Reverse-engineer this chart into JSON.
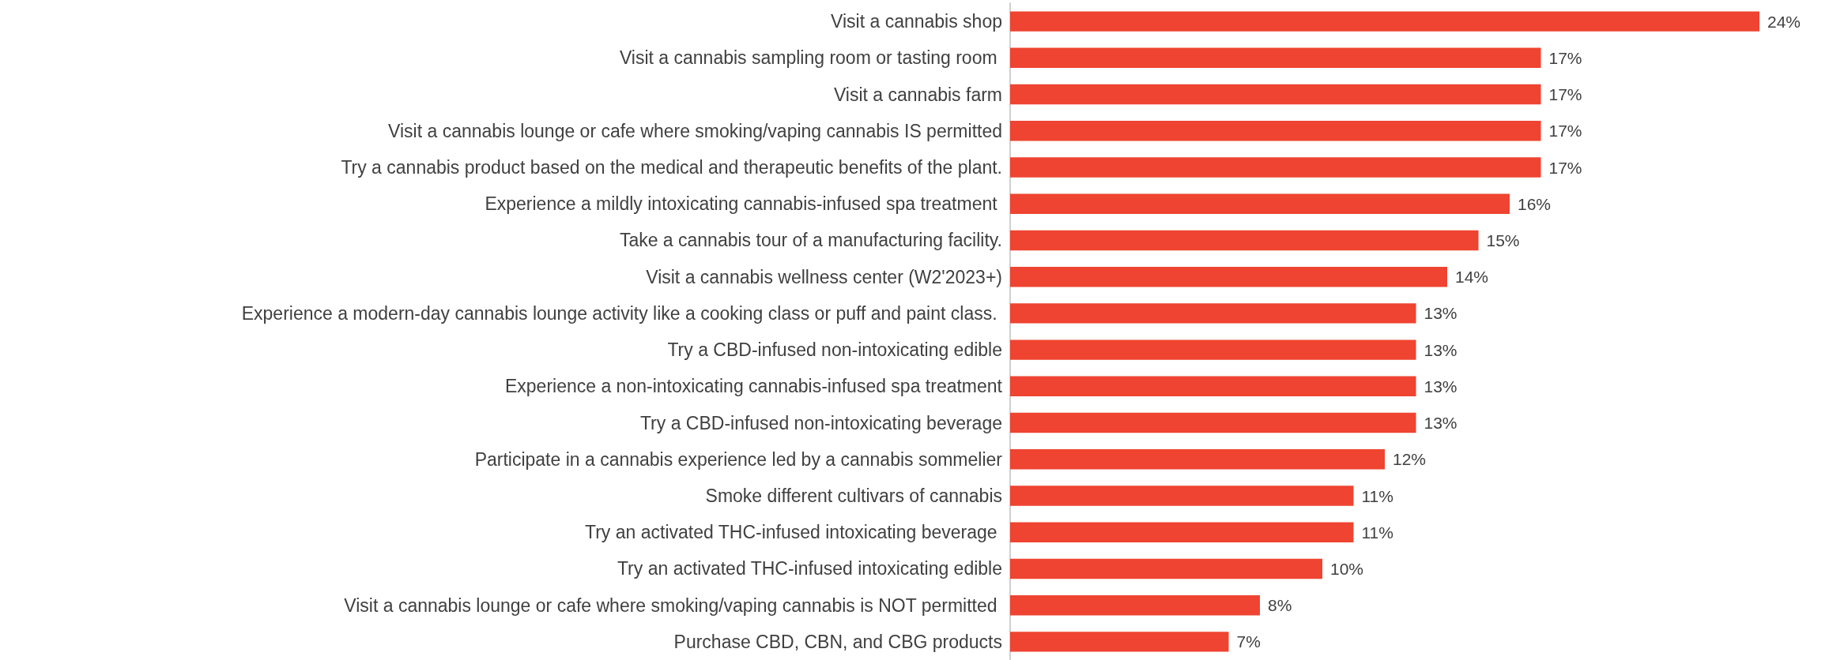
{
  "chart_data": {
    "type": "bar",
    "orientation": "horizontal",
    "categories": [
      "Visit a cannabis shop",
      "Visit a cannabis sampling room or tasting room ",
      "Visit a cannabis farm",
      "Visit a cannabis lounge or cafe where smoking/vaping cannabis IS permitted",
      "Try a cannabis product based on the medical and therapeutic benefits of the plant.",
      "Experience a mildly intoxicating cannabis-infused spa treatment ",
      "Take a cannabis tour of a manufacturing facility.",
      "Visit a cannabis wellness center (W2'2023+)",
      "Experience a modern-day cannabis lounge activity like a cooking class or puff and paint class. ",
      "Try a CBD-infused non-intoxicating edible",
      "Experience a non-intoxicating cannabis-infused spa treatment",
      "Try a CBD-infused non-intoxicating beverage",
      "Participate in a cannabis experience led by a cannabis sommelier",
      "Smoke different cultivars of cannabis",
      "Try an activated THC-infused intoxicating beverage ",
      "Try an activated THC-infused intoxicating edible",
      "Visit a cannabis lounge or cafe where smoking/vaping cannabis is NOT permitted ",
      "Purchase CBD, CBN, and CBG products"
    ],
    "values": [
      24,
      17,
      17,
      17,
      17,
      16,
      15,
      14,
      13,
      13,
      13,
      13,
      12,
      11,
      11,
      10,
      8,
      7
    ],
    "value_labels": [
      "24%",
      "17%",
      "17%",
      "17%",
      "17%",
      "16%",
      "15%",
      "14%",
      "13%",
      "13%",
      "13%",
      "13%",
      "12%",
      "11%",
      "11%",
      "10%",
      "8%",
      "7%"
    ],
    "color": "#ee4431",
    "xlim": [
      0,
      24
    ],
    "grid": false,
    "tick_labels": "y"
  }
}
